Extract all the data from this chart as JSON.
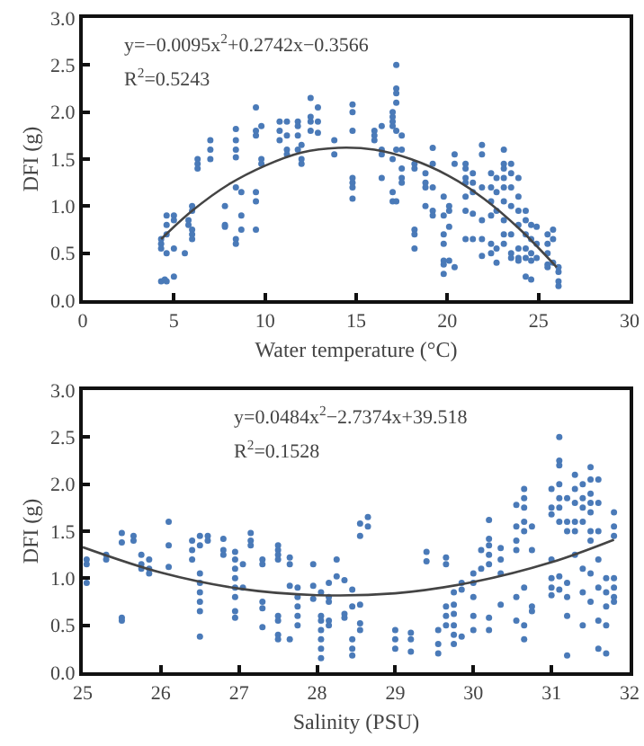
{
  "chart_data": [
    {
      "type": "scatter",
      "xlabel": "Water temperature (°C)",
      "ylabel": "DFI (g)",
      "annotations": [
        "y=−0.0095x$^{2}$+0.2742x−0.3566",
        "R$^{2}$=0.5243"
      ],
      "xlim": [
        0,
        30
      ],
      "xticks": [
        0,
        5,
        10,
        15,
        20,
        25,
        30
      ],
      "ylim": [
        0,
        3
      ],
      "yticks": [
        {
          "value": 0,
          "label": "0.0"
        },
        0.5,
        {
          "value": 1,
          "label": "1.0"
        },
        1.5,
        {
          "value": 2,
          "label": "2.0"
        },
        2.5,
        {
          "value": 3,
          "label": "3.0"
        }
      ],
      "grid": false,
      "series": [
        {
          "color": "#4a7ab8",
          "marker": "circle",
          "x": [
            4.3,
            4.3,
            4.3,
            4.3,
            4.5,
            4.6,
            4.6,
            4.6,
            4.6,
            4.6,
            5,
            5,
            5,
            5,
            5.6,
            5.8,
            5.8,
            6,
            6,
            6,
            6,
            6,
            6.3,
            6.3,
            6.3,
            7,
            7,
            7,
            7.8,
            7.8,
            7.8,
            8.4,
            8.4,
            8.4,
            8.4,
            8.4,
            8.4,
            8.4,
            8.7,
            8.7,
            8.7,
            9.5,
            9.5,
            9.5,
            9.5,
            9.5,
            9.5,
            9.8,
            9.8,
            9.8,
            10.8,
            10.8,
            10.8,
            11.2,
            11.2,
            11.2,
            11.2,
            11.8,
            11.8,
            11.8,
            11.8,
            12,
            12,
            12,
            12.5,
            12.5,
            12.5,
            12.5,
            12.9,
            12.9,
            12.9,
            13.8,
            13.8,
            14.8,
            14.8,
            14.8,
            14.8,
            14.8,
            14.8,
            14.8,
            16,
            16,
            16,
            16.4,
            16.4,
            16.4,
            16.4,
            17,
            17,
            17,
            17,
            17,
            17,
            17,
            17.2,
            17.2,
            17.2,
            17.2,
            17.2,
            17.2,
            17.2,
            17.5,
            17.5,
            17.5,
            17.5,
            17.5,
            18.2,
            18.2,
            18.2,
            18.2,
            18.2,
            18.8,
            18.8,
            18.8,
            18.8,
            19.2,
            19.2,
            19.2,
            19.2,
            19.2,
            19.8,
            19.8,
            19.8,
            19.8,
            19.8,
            19.8,
            19.8,
            20.1,
            20.1,
            20.1,
            20.1,
            20.4,
            20.4,
            20.4,
            21,
            21,
            21,
            21,
            21,
            21,
            21,
            21.4,
            21.4,
            21.4,
            21.4,
            21.4,
            21.9,
            21.9,
            21.9,
            21.9,
            21.9,
            21.9,
            22.4,
            22.4,
            22.4,
            22.4,
            22.4,
            22.4,
            22.7,
            22.7,
            22.7,
            22.7,
            22.7,
            23.1,
            23.1,
            23.1,
            23.1,
            23.1,
            23.1,
            23.1,
            23.1,
            23.1,
            23.5,
            23.5,
            23.5,
            23.5,
            23.5,
            23.5,
            23.5,
            23.9,
            23.9,
            23.9,
            23.9,
            23.9,
            23.9,
            23.9,
            24.3,
            24.3,
            24.3,
            24.3,
            24.3,
            24.3,
            24.6,
            24.6,
            24.6,
            24.6,
            24.6,
            24.9,
            24.9,
            24.9,
            25.5,
            25.5,
            25.5,
            25.5,
            25.5,
            25.8,
            25.8,
            25.8,
            26.1,
            26.1,
            26.1,
            26.1
          ],
          "values": [
            0.6,
            0.55,
            0.65,
            0.2,
            0.22,
            0.9,
            0.8,
            0.7,
            0.5,
            0.2,
            0.9,
            0.55,
            0.85,
            0.25,
            0.5,
            0.8,
            0.85,
            1.0,
            0.95,
            0.75,
            0.7,
            0.65,
            1.45,
            1.4,
            1.5,
            1.7,
            1.6,
            1.5,
            1.0,
            0.8,
            0.78,
            1.82,
            1.7,
            1.6,
            1.52,
            1.2,
            0.65,
            0.6,
            1.15,
            0.9,
            0.75,
            2.05,
            1.75,
            1.8,
            1.15,
            1.05,
            0.75,
            1.85,
            1.5,
            1.45,
            1.9,
            1.8,
            1.7,
            1.9,
            1.75,
            1.6,
            1.55,
            1.9,
            1.85,
            1.75,
            1.6,
            1.5,
            1.45,
            1.65,
            2.15,
            1.95,
            1.9,
            1.8,
            2.05,
            1.9,
            1.78,
            1.7,
            1.55,
            2.08,
            2.0,
            1.8,
            1.3,
            1.25,
            1.2,
            1.08,
            1.8,
            1.75,
            1.7,
            1.6,
            1.55,
            1.3,
            1.85,
            2.0,
            1.95,
            1.9,
            1.85,
            1.15,
            1.05,
            1.5,
            2.5,
            2.25,
            2.2,
            2.1,
            1.8,
            1.6,
            1.05,
            1.75,
            1.6,
            1.4,
            1.3,
            1.25,
            1.45,
            1.4,
            0.75,
            0.7,
            0.55,
            1.35,
            1.25,
            1.2,
            1.0,
            1.62,
            1.45,
            1.2,
            0.95,
            0.9,
            1.1,
            0.9,
            0.7,
            0.6,
            0.42,
            0.38,
            0.28,
            1.0,
            0.95,
            0.78,
            0.42,
            1.55,
            1.45,
            0.35,
            1.45,
            1.4,
            1.3,
            1.25,
            1.1,
            0.95,
            0.65,
            1.35,
            1.25,
            1.15,
            0.92,
            0.65,
            1.65,
            1.55,
            1.2,
            0.85,
            0.65,
            0.47,
            1.35,
            1.2,
            1.05,
            0.9,
            0.6,
            0.5,
            1.3,
            1.15,
            0.95,
            0.55,
            0.4,
            1.6,
            1.45,
            1.4,
            1.3,
            1.2,
            1.05,
            0.85,
            0.7,
            0.6,
            1.45,
            1.35,
            1.2,
            1.0,
            0.7,
            0.5,
            0.45,
            1.3,
            1.1,
            0.95,
            0.8,
            0.55,
            0.45,
            0.42,
            0.95,
            0.85,
            0.7,
            0.55,
            0.45,
            0.25,
            0.8,
            0.65,
            0.5,
            0.42,
            0.22,
            0.78,
            0.6,
            0.45,
            0.7,
            0.6,
            0.5,
            0.38,
            0.35,
            0.75,
            0.65,
            0.4,
            0.35,
            0.3,
            0.2,
            0.15
          ]
        },
        {
          "type": "line",
          "marker": "none",
          "color": "#444444",
          "x": [
            4.3,
            6,
            8,
            10,
            12,
            14,
            16,
            18,
            20,
            22,
            24,
            26
          ],
          "values": [
            0.65,
            0.95,
            1.23,
            1.43,
            1.57,
            1.62,
            1.6,
            1.5,
            1.33,
            1.08,
            0.75,
            0.35
          ]
        }
      ]
    },
    {
      "type": "scatter",
      "xlabel": "Salinity (PSU)",
      "ylabel": "DFI (g)",
      "annotations": [
        "y=0.0484x$^{2}$−2.7374x+39.518",
        "R$^{2}$=0.1528"
      ],
      "xlim": [
        25,
        32
      ],
      "xticks": [
        25,
        26,
        27,
        28,
        29,
        30,
        31,
        32
      ],
      "ylim": [
        0,
        3
      ],
      "yticks": [
        {
          "value": 0,
          "label": "0.0"
        },
        0.5,
        {
          "value": 1,
          "label": "1.0"
        },
        1.5,
        {
          "value": 2,
          "label": "2.0"
        },
        2.5,
        {
          "value": 3,
          "label": "3.0"
        }
      ],
      "grid": false,
      "series": [
        {
          "color": "#4a7ab8",
          "marker": "circle",
          "x": [
            25.05,
            25.05,
            25.05,
            25.3,
            25.3,
            25.5,
            25.5,
            25.5,
            25.5,
            25.65,
            25.65,
            25.75,
            25.75,
            25.75,
            25.85,
            25.85,
            25.85,
            26.1,
            26.1,
            26.1,
            26.4,
            26.4,
            26.4,
            26.5,
            26.5,
            26.5,
            26.5,
            26.5,
            26.5,
            26.5,
            26.5,
            26.6,
            26.6,
            26.8,
            26.8,
            26.8,
            26.95,
            26.95,
            26.95,
            26.95,
            26.95,
            26.95,
            26.95,
            26.95,
            27.05,
            27.05,
            27.15,
            27.15,
            27.15,
            27.3,
            27.3,
            27.3,
            27.3,
            27.3,
            27.5,
            27.5,
            27.5,
            27.5,
            27.5,
            27.5,
            27.5,
            27.5,
            27.65,
            27.65,
            27.65,
            27.65,
            27.75,
            27.75,
            27.75,
            27.75,
            27.75,
            27.95,
            27.95,
            27.95,
            28.05,
            28.05,
            28.05,
            28.05,
            28.05,
            28.05,
            28.05,
            28.15,
            28.15,
            28.15,
            28.15,
            28.15,
            28.25,
            28.25,
            28.35,
            28.35,
            28.35,
            28.45,
            28.45,
            28.45,
            28.45,
            28.45,
            28.55,
            28.55,
            28.55,
            28.55,
            28.55,
            28.65,
            28.65,
            29,
            29,
            29,
            29.2,
            29.2,
            29.2,
            29.4,
            29.4,
            29.55,
            29.55,
            29.55,
            29.65,
            29.65,
            29.65,
            29.65,
            29.65,
            29.75,
            29.75,
            29.75,
            29.75,
            29.75,
            29.75,
            29.85,
            29.85,
            29.85,
            30,
            30,
            30,
            30,
            30,
            30.1,
            30.1,
            30.2,
            30.2,
            30.2,
            30.2,
            30.2,
            30.2,
            30.2,
            30.35,
            30.35,
            30.35,
            30.35,
            30.55,
            30.55,
            30.55,
            30.55,
            30.55,
            30.55,
            30.65,
            30.65,
            30.65,
            30.65,
            30.65,
            30.65,
            30.65,
            30.65,
            30.75,
            30.75,
            30.75,
            30.75,
            31,
            31,
            31,
            31,
            31,
            31,
            31,
            31.1,
            31.1,
            31.1,
            31.1,
            31.1,
            31.1,
            31.1,
            31.1,
            31.1,
            31.2,
            31.2,
            31.2,
            31.2,
            31.2,
            31.2,
            31.2,
            31.3,
            31.3,
            31.3,
            31.3,
            31.3,
            31.3,
            31.4,
            31.4,
            31.4,
            31.4,
            31.4,
            31.4,
            31.4,
            31.5,
            31.5,
            31.5,
            31.5,
            31.5,
            31.5,
            31.5,
            31.5,
            31.5,
            31.6,
            31.6,
            31.6,
            31.6,
            31.6,
            31.6,
            31.6,
            31.7,
            31.7,
            31.7,
            31.7,
            31.7,
            31.8,
            31.8,
            31.8,
            31.8,
            31.8,
            31.8,
            31.8
          ],
          "values": [
            1.2,
            1.15,
            0.95,
            1.25,
            1.2,
            1.48,
            1.38,
            0.58,
            0.55,
            1.45,
            1.4,
            1.25,
            1.15,
            1.1,
            1.2,
            1.1,
            1.05,
            1.6,
            1.35,
            1.12,
            1.4,
            1.3,
            1.2,
            1.45,
            1.35,
            1.05,
            0.95,
            0.85,
            0.75,
            0.65,
            0.38,
            1.45,
            1.4,
            1.42,
            1.3,
            1.25,
            1.28,
            1.2,
            1.1,
            1.0,
            0.9,
            0.8,
            0.65,
            0.58,
            1.15,
            0.9,
            1.48,
            1.4,
            1.35,
            1.2,
            1.15,
            0.75,
            0.68,
            0.48,
            1.35,
            1.3,
            1.25,
            1.2,
            0.6,
            0.55,
            0.4,
            0.35,
            1.22,
            1.15,
            0.92,
            0.35,
            0.9,
            0.8,
            0.7,
            0.6,
            0.5,
            1.15,
            0.92,
            0.78,
            0.85,
            0.6,
            0.55,
            0.45,
            0.35,
            0.25,
            0.15,
            0.95,
            0.8,
            0.75,
            0.55,
            0.5,
            1.2,
            1.02,
            0.98,
            0.62,
            0.58,
            0.88,
            0.7,
            0.35,
            0.25,
            0.18,
            1.58,
            1.45,
            0.72,
            0.52,
            0.45,
            1.65,
            1.55,
            0.45,
            0.35,
            0.25,
            0.42,
            0.35,
            0.22,
            1.28,
            1.18,
            0.45,
            0.3,
            0.2,
            1.22,
            1.15,
            0.7,
            0.6,
            0.5,
            0.85,
            0.72,
            0.62,
            0.5,
            0.4,
            0.3,
            0.95,
            0.88,
            0.38,
            1.05,
            0.95,
            0.8,
            0.6,
            0.45,
            1.3,
            1.1,
            1.62,
            1.42,
            1.35,
            1.25,
            1.15,
            0.58,
            0.45,
            1.32,
            1.2,
            1.05,
            0.72,
            1.78,
            1.55,
            1.4,
            1.3,
            0.8,
            0.55,
            1.95,
            1.85,
            1.75,
            1.6,
            1.5,
            0.9,
            0.5,
            0.35,
            1.55,
            1.3,
            0.7,
            0.65,
            1.95,
            1.75,
            1.68,
            1.2,
            1.0,
            0.9,
            0.82,
            2.5,
            2.25,
            2.2,
            2.0,
            1.85,
            1.75,
            1.6,
            1.02,
            0.88,
            1.85,
            1.6,
            1.5,
            0.95,
            0.8,
            0.6,
            0.18,
            2.1,
            1.95,
            1.8,
            1.6,
            1.5,
            1.25,
            2.0,
            1.85,
            1.75,
            1.6,
            1.1,
            0.85,
            0.5,
            2.18,
            2.05,
            1.9,
            1.8,
            1.7,
            1.5,
            1.4,
            1.05,
            0.75,
            2.05,
            1.8,
            1.5,
            1.2,
            0.9,
            0.55,
            0.25,
            1.0,
            0.85,
            0.7,
            0.5,
            0.2,
            1.7,
            1.55,
            1.45,
            1.0,
            0.9,
            0.8,
            0.75
          ]
        },
        {
          "type": "line",
          "marker": "none",
          "color": "#444444",
          "x": [
            25,
            26,
            27,
            28,
            29,
            30,
            31,
            31.8
          ],
          "values": [
            1.33,
            1.06,
            0.89,
            0.82,
            0.84,
            0.96,
            1.17,
            1.41
          ]
        }
      ]
    }
  ]
}
